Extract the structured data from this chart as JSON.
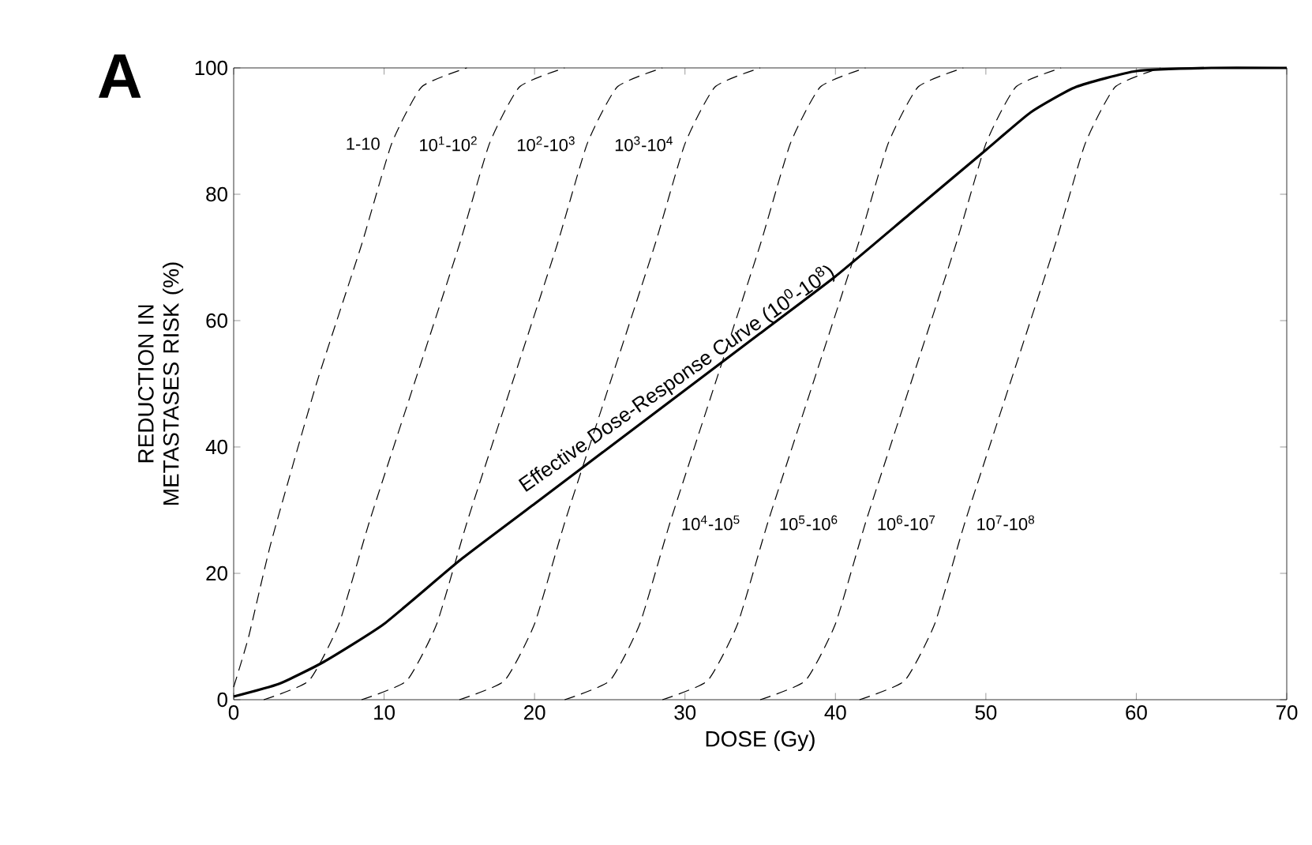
{
  "chart_data": {
    "type": "line",
    "xlabel": "DOSE (Gy)",
    "ylabel": "REDUCTION IN METASTASES RISK (%)",
    "xlim": [
      0,
      70
    ],
    "ylim": [
      0,
      100
    ],
    "xticks": [
      0,
      10,
      20,
      30,
      40,
      50,
      60,
      70
    ],
    "yticks": [
      0,
      20,
      40,
      60,
      80,
      100
    ],
    "grid": false,
    "marker": "none",
    "series": [
      {
        "name": "1-10",
        "color": "#000000",
        "line_style": "dashed",
        "x": [
          0,
          1,
          2.5,
          5.5,
          8.5,
          10.5,
          12.5,
          15.5
        ],
        "values": [
          2,
          10,
          25,
          50,
          72,
          88,
          97,
          100
        ]
      },
      {
        "name": "10$^{1}$-10$^{2}$",
        "color": "#000000",
        "line_style": "dashed",
        "x": [
          2,
          5,
          7,
          9,
          12,
          15,
          17,
          19,
          22
        ],
        "values": [
          0,
          3,
          12,
          28,
          50,
          72,
          88,
          97,
          100
        ]
      },
      {
        "name": "10$^{2}$-10$^{3}$",
        "color": "#000000",
        "line_style": "dashed",
        "x": [
          8.5,
          11.5,
          13.5,
          15.5,
          18.5,
          21.5,
          23.5,
          25.5,
          28.5
        ],
        "values": [
          0,
          3,
          12,
          28,
          50,
          72,
          88,
          97,
          100
        ]
      },
      {
        "name": "10$^{3}$-10$^{4}$",
        "color": "#000000",
        "line_style": "dashed",
        "x": [
          15,
          18,
          20,
          22,
          25,
          28,
          30,
          32,
          35
        ],
        "values": [
          0,
          3,
          12,
          28,
          50,
          72,
          88,
          97,
          100
        ]
      },
      {
        "name": "10$^{4}$-10$^{5}$",
        "color": "#000000",
        "line_style": "dashed",
        "x": [
          22,
          25,
          27,
          29,
          32,
          35,
          37,
          39,
          42
        ],
        "values": [
          0,
          3,
          12,
          28,
          50,
          72,
          88,
          97,
          100
        ]
      },
      {
        "name": "10$^{5}$-10$^{6}$",
        "color": "#000000",
        "line_style": "dashed",
        "x": [
          28.5,
          31.5,
          33.5,
          35.5,
          38.5,
          41.5,
          43.5,
          45.5,
          48.5
        ],
        "values": [
          0,
          3,
          12,
          28,
          50,
          72,
          88,
          97,
          100
        ]
      },
      {
        "name": "10$^{6}$-10$^{7}$",
        "color": "#000000",
        "line_style": "dashed",
        "x": [
          35,
          38,
          40,
          42,
          45,
          48,
          50,
          52,
          55
        ],
        "values": [
          0,
          3,
          12,
          28,
          50,
          72,
          88,
          97,
          100
        ]
      },
      {
        "name": "10$^{7}$-10$^{8}$",
        "color": "#000000",
        "line_style": "dashed",
        "x": [
          41.6,
          44.6,
          46.6,
          48.6,
          51.6,
          54.6,
          56.6,
          58.6,
          61.6
        ],
        "values": [
          0,
          3,
          12,
          28,
          50,
          72,
          88,
          97,
          100
        ]
      },
      {
        "name": "Effective Dose-Response Curve (10$^{0}$-10$^{8}$)",
        "color": "#000000",
        "line_style": "solid",
        "x": [
          0,
          3,
          6,
          10,
          15,
          20,
          25,
          30,
          35,
          40,
          45,
          50,
          53,
          56,
          60,
          65,
          70
        ],
        "values": [
          0.5,
          2.5,
          6,
          12,
          22,
          31,
          40,
          49,
          58,
          67,
          77,
          87,
          93,
          97,
          99.5,
          100,
          100
        ]
      }
    ],
    "annotations": [
      "A"
    ]
  }
}
